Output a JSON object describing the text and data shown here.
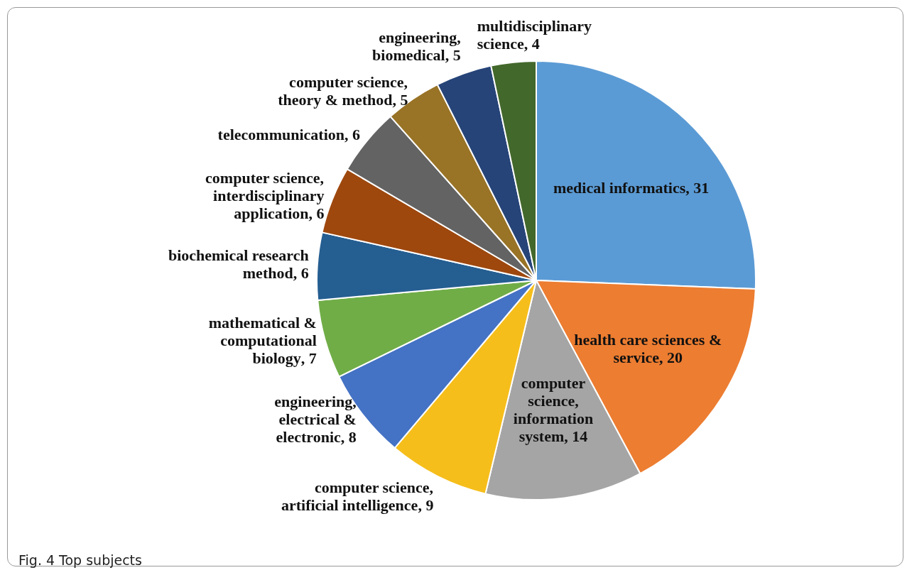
{
  "chart_data": {
    "type": "pie",
    "categories": [
      "medical informatics",
      "health care sciences & service",
      "computer science, information system",
      "computer science, artificial intelligence",
      "engineering, electrical & electronic",
      "mathematical & computational biology",
      "biochemical research method",
      "computer science, interdisciplinary application",
      "telecommunication",
      "computer science, theory & method",
      "engineering, biomedical",
      "multidisciplinary science"
    ],
    "values": [
      31,
      20,
      14,
      9,
      8,
      7,
      6,
      6,
      6,
      5,
      5,
      4
    ],
    "colors": [
      "#5b9bd5",
      "#ed7d31",
      "#a5a5a5",
      "#f6be1b",
      "#4472c4",
      "#70ad47",
      "#255e91",
      "#9e480e",
      "#636363",
      "#997326",
      "#264478",
      "#43682b"
    ],
    "value_labels": [
      ", 31",
      ", 20",
      ", 14",
      ", 9",
      ", 8",
      ", 7",
      ", 6",
      ", 6",
      ", 6",
      ", 5",
      ", 5",
      ", 4"
    ],
    "legend": false,
    "annotations": [
      "Fig. 4 Top subjects"
    ]
  }
}
